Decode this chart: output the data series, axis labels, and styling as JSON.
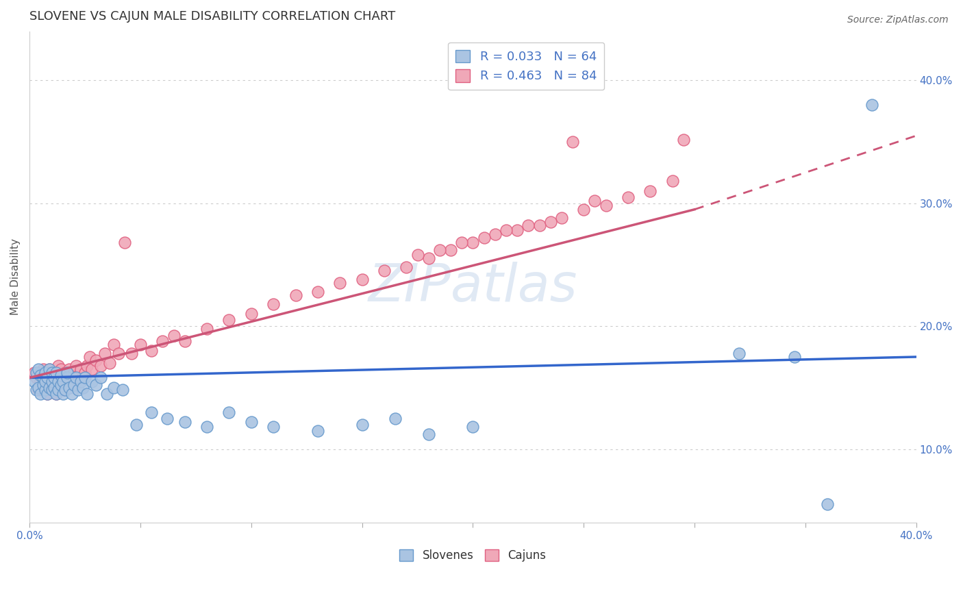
{
  "title": "SLOVENE VS CAJUN MALE DISABILITY CORRELATION CHART",
  "source": "Source: ZipAtlas.com",
  "ylabel": "Male Disability",
  "xlim": [
    0.0,
    0.4
  ],
  "ylim": [
    0.04,
    0.44
  ],
  "ytick_vals_right": [
    0.1,
    0.2,
    0.3,
    0.4
  ],
  "ytick_labels_right": [
    "10.0%",
    "20.0%",
    "30.0%",
    "40.0%"
  ],
  "grid_color": "#cccccc",
  "background_color": "#ffffff",
  "slovene_color": "#aac4e2",
  "cajun_color": "#f0a8b8",
  "slovene_edge_color": "#6699cc",
  "cajun_edge_color": "#e06080",
  "regression_slovene_color": "#3366cc",
  "regression_cajun_color": "#cc5577",
  "title_fontsize": 13,
  "axis_label_fontsize": 11,
  "tick_fontsize": 11,
  "legend_fontsize": 13,
  "slovene_x": [
    0.002,
    0.003,
    0.003,
    0.004,
    0.004,
    0.005,
    0.005,
    0.006,
    0.006,
    0.007,
    0.007,
    0.007,
    0.008,
    0.008,
    0.009,
    0.009,
    0.01,
    0.01,
    0.01,
    0.011,
    0.011,
    0.012,
    0.012,
    0.013,
    0.013,
    0.014,
    0.014,
    0.015,
    0.015,
    0.016,
    0.017,
    0.017,
    0.018,
    0.019,
    0.02,
    0.021,
    0.022,
    0.023,
    0.024,
    0.025,
    0.026,
    0.028,
    0.03,
    0.032,
    0.035,
    0.038,
    0.042,
    0.048,
    0.055,
    0.062,
    0.07,
    0.08,
    0.09,
    0.1,
    0.11,
    0.13,
    0.15,
    0.165,
    0.18,
    0.2,
    0.32,
    0.345,
    0.36,
    0.38
  ],
  "slovene_y": [
    0.155,
    0.148,
    0.162,
    0.15,
    0.165,
    0.145,
    0.16,
    0.152,
    0.158,
    0.148,
    0.155,
    0.162,
    0.145,
    0.158,
    0.15,
    0.165,
    0.148,
    0.155,
    0.162,
    0.15,
    0.158,
    0.145,
    0.162,
    0.148,
    0.155,
    0.152,
    0.16,
    0.145,
    0.155,
    0.148,
    0.158,
    0.162,
    0.15,
    0.145,
    0.152,
    0.158,
    0.148,
    0.155,
    0.15,
    0.158,
    0.145,
    0.155,
    0.152,
    0.158,
    0.145,
    0.15,
    0.148,
    0.12,
    0.13,
    0.125,
    0.122,
    0.118,
    0.13,
    0.122,
    0.118,
    0.115,
    0.12,
    0.125,
    0.112,
    0.118,
    0.178,
    0.175,
    0.055,
    0.38
  ],
  "cajun_x": [
    0.002,
    0.003,
    0.004,
    0.005,
    0.005,
    0.006,
    0.006,
    0.007,
    0.007,
    0.008,
    0.008,
    0.009,
    0.009,
    0.01,
    0.01,
    0.011,
    0.011,
    0.012,
    0.012,
    0.013,
    0.013,
    0.014,
    0.014,
    0.015,
    0.016,
    0.016,
    0.017,
    0.018,
    0.018,
    0.019,
    0.02,
    0.021,
    0.022,
    0.023,
    0.024,
    0.025,
    0.026,
    0.027,
    0.028,
    0.03,
    0.032,
    0.034,
    0.036,
    0.038,
    0.04,
    0.043,
    0.046,
    0.05,
    0.055,
    0.06,
    0.065,
    0.07,
    0.08,
    0.09,
    0.1,
    0.11,
    0.12,
    0.13,
    0.14,
    0.15,
    0.16,
    0.17,
    0.18,
    0.19,
    0.2,
    0.21,
    0.22,
    0.23,
    0.24,
    0.25,
    0.26,
    0.27,
    0.28,
    0.29,
    0.295,
    0.245,
    0.175,
    0.185,
    0.195,
    0.205,
    0.215,
    0.225,
    0.235,
    0.255
  ],
  "cajun_y": [
    0.162,
    0.158,
    0.148,
    0.162,
    0.155,
    0.148,
    0.165,
    0.152,
    0.16,
    0.145,
    0.158,
    0.155,
    0.165,
    0.148,
    0.162,
    0.15,
    0.158,
    0.145,
    0.162,
    0.152,
    0.168,
    0.155,
    0.165,
    0.148,
    0.158,
    0.162,
    0.155,
    0.15,
    0.165,
    0.158,
    0.162,
    0.168,
    0.155,
    0.165,
    0.158,
    0.162,
    0.168,
    0.175,
    0.165,
    0.172,
    0.168,
    0.178,
    0.17,
    0.185,
    0.178,
    0.268,
    0.178,
    0.185,
    0.18,
    0.188,
    0.192,
    0.188,
    0.198,
    0.205,
    0.21,
    0.218,
    0.225,
    0.228,
    0.235,
    0.238,
    0.245,
    0.248,
    0.255,
    0.262,
    0.268,
    0.275,
    0.278,
    0.282,
    0.288,
    0.295,
    0.298,
    0.305,
    0.31,
    0.318,
    0.352,
    0.35,
    0.258,
    0.262,
    0.268,
    0.272,
    0.278,
    0.282,
    0.285,
    0.302
  ],
  "cajun_regression_x_start": 0.0,
  "cajun_regression_x_solid_end": 0.3,
  "cajun_regression_x_dash_end": 0.4,
  "slovene_regression_x_start": 0.0,
  "slovene_regression_x_end": 0.4
}
